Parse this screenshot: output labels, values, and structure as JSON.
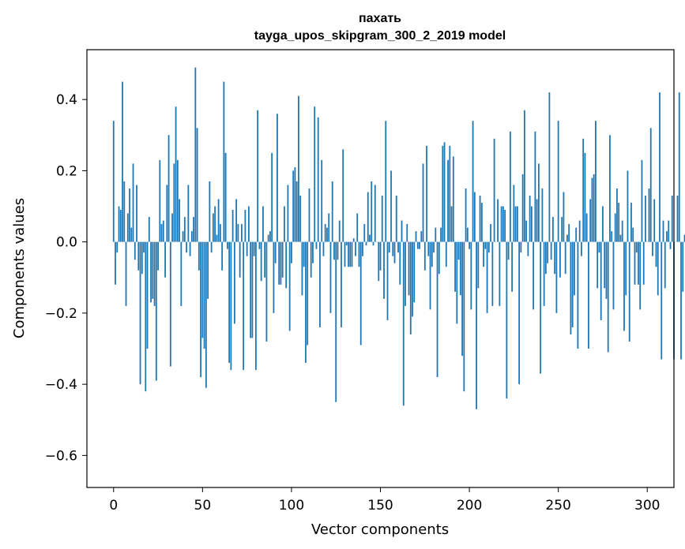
{
  "chart_data": {
    "type": "bar",
    "title": "пахать",
    "subtitle": "tayga_upos_skipgram_300_2_2019 model",
    "xlabel": "Vector components",
    "ylabel": "Components values",
    "xlim": [
      -15,
      315
    ],
    "ylim": [
      -0.69,
      0.54
    ],
    "x_ticks": [
      0,
      50,
      100,
      150,
      200,
      250,
      300
    ],
    "x_tick_labels": [
      "0",
      "50",
      "100",
      "150",
      "200",
      "250",
      "300"
    ],
    "y_ticks": [
      -0.6,
      -0.4,
      -0.2,
      0.0,
      0.2,
      0.4
    ],
    "y_tick_labels": [
      "−0.6",
      "−0.4",
      "−0.2",
      "0.0",
      "0.2",
      "0.4"
    ],
    "bar_color": "#1f77b4",
    "grid": false,
    "legend": "none",
    "x_start": 0,
    "values": [
      0.34,
      -0.12,
      -0.03,
      0.1,
      0.09,
      0.45,
      0.17,
      -0.18,
      0.08,
      0.15,
      0.04,
      0.22,
      -0.05,
      0.16,
      -0.08,
      -0.4,
      -0.09,
      -0.03,
      -0.42,
      -0.3,
      0.07,
      -0.17,
      -0.16,
      -0.18,
      -0.39,
      -0.08,
      0.23,
      0.05,
      0.06,
      -0.1,
      0.16,
      0.3,
      -0.35,
      0.08,
      0.22,
      0.38,
      0.23,
      0.12,
      -0.18,
      0.03,
      0.07,
      -0.03,
      0.16,
      -0.04,
      0.03,
      0.07,
      0.49,
      0.32,
      -0.08,
      -0.38,
      -0.27,
      -0.3,
      -0.41,
      -0.16,
      0.17,
      -0.03,
      0.08,
      0.1,
      0.02,
      0.12,
      0.05,
      -0.08,
      0.45,
      0.25,
      -0.02,
      -0.34,
      -0.36,
      0.09,
      -0.23,
      0.12,
      0.05,
      -0.1,
      0.05,
      -0.36,
      0.09,
      -0.04,
      0.1,
      -0.27,
      -0.27,
      -0.04,
      -0.36,
      0.37,
      -0.02,
      -0.11,
      0.1,
      -0.1,
      -0.28,
      0.02,
      0.03,
      0.25,
      -0.2,
      -0.06,
      0.36,
      -0.12,
      -0.12,
      -0.1,
      0.1,
      -0.13,
      0.16,
      -0.25,
      -0.06,
      0.2,
      0.21,
      0.17,
      0.41,
      0.13,
      -0.15,
      -0.07,
      -0.34,
      -0.29,
      0.15,
      -0.1,
      -0.06,
      0.38,
      -0.02,
      0.35,
      -0.24,
      0.23,
      -0.04,
      0.05,
      0.04,
      0.08,
      -0.2,
      0.17,
      -0.05,
      -0.45,
      -0.05,
      0.06,
      -0.24,
      0.26,
      -0.07,
      -0.01,
      -0.07,
      -0.07,
      -0.07,
      0.01,
      -0.04,
      0.08,
      -0.07,
      -0.29,
      -0.04,
      0.05,
      -0.01,
      0.14,
      0.02,
      0.17,
      -0.01,
      0.16,
      0.0,
      -0.11,
      -0.08,
      0.13,
      -0.16,
      0.34,
      -0.22,
      -0.03,
      0.2,
      -0.04,
      -0.06,
      0.13,
      -0.03,
      -0.12,
      0.06,
      -0.46,
      -0.18,
      0.05,
      -0.15,
      -0.26,
      -0.21,
      -0.17,
      0.03,
      -0.02,
      -0.02,
      0.03,
      0.22,
      -0.08,
      0.27,
      -0.04,
      -0.19,
      -0.07,
      -0.03,
      0.04,
      -0.38,
      -0.09,
      0.04,
      0.27,
      0.28,
      -0.07,
      0.23,
      0.27,
      0.1,
      0.24,
      -0.14,
      -0.23,
      -0.05,
      -0.15,
      -0.32,
      -0.42,
      0.15,
      0.04,
      -0.02,
      -0.19,
      0.34,
      0.14,
      -0.47,
      -0.13,
      0.13,
      0.11,
      -0.07,
      -0.02,
      -0.2,
      -0.03,
      0.05,
      -0.18,
      0.29,
      0.0,
      0.12,
      -0.18,
      0.1,
      0.1,
      0.09,
      -0.44,
      -0.05,
      0.31,
      -0.14,
      0.16,
      0.1,
      0.1,
      -0.4,
      -0.03,
      0.19,
      0.37,
      0.06,
      -0.04,
      0.13,
      0.1,
      -0.19,
      0.31,
      0.12,
      0.22,
      -0.37,
      0.15,
      -0.18,
      -0.09,
      -0.06,
      0.42,
      -0.05,
      0.07,
      -0.09,
      -0.2,
      0.34,
      -0.1,
      0.07,
      0.14,
      -0.09,
      0.02,
      0.05,
      -0.26,
      -0.24,
      -0.15,
      0.04,
      -0.3,
      0.06,
      -0.04,
      0.29,
      0.25,
      0.08,
      -0.3,
      0.12,
      0.18,
      0.19,
      0.34,
      -0.13,
      -0.03,
      -0.22,
      0.1,
      -0.13,
      -0.16,
      -0.31,
      0.3,
      0.03,
      -0.19,
      0.08,
      0.15,
      0.11,
      0.02,
      0.06,
      -0.25,
      -0.15,
      0.2,
      -0.28,
      0.11,
      0.04,
      -0.12,
      -0.03,
      -0.12,
      -0.19,
      0.23,
      -0.12,
      0.13,
      0.0,
      0.15,
      0.32,
      -0.04,
      0.12,
      -0.07,
      -0.15,
      0.42,
      -0.33,
      0.06,
      -0.13,
      0.03,
      0.06,
      -0.02,
      0.13,
      -0.33,
      0.0,
      0.13,
      0.42,
      -0.33,
      -0.14,
      0.02
    ]
  }
}
